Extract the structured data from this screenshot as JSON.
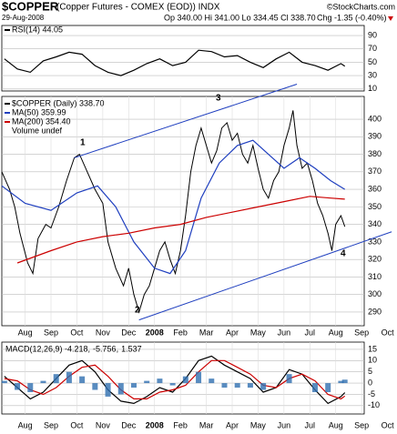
{
  "header": {
    "symbol": "$COPPER",
    "title": "(Copper Futures - COMEX (EOD)) INDX",
    "credit": "©StockCharts.com",
    "date": "29-Aug-2008",
    "quote": "Op 340.00 Hi 341.00 Lo 334.45 Cl 338.70",
    "change": "Chg -1.35 (-0.40%)"
  },
  "chart_data": [
    {
      "type": "line",
      "ylim": [
        7,
        105
      ],
      "yticks": [
        10,
        30,
        50,
        70,
        90
      ],
      "xlim": [
        -0.9,
        13.1
      ],
      "grid": true,
      "series": [
        {
          "name": "RSI(14) 44.05",
          "color": "#000000",
          "x": [
            -0.8,
            -0.3,
            0.2,
            0.7,
            1.2,
            1.7,
            2.2,
            2.7,
            3.2,
            3.7,
            4.2,
            4.7,
            5.2,
            5.7,
            6.2,
            6.7,
            7.2,
            7.7,
            8.2,
            8.7,
            9.2,
            9.7,
            10.2,
            10.7,
            11.2,
            11.7,
            12.2,
            12.35
          ],
          "values": [
            55,
            40,
            35,
            52,
            58,
            65,
            62,
            45,
            35,
            30,
            38,
            48,
            55,
            45,
            50,
            68,
            66,
            58,
            60,
            50,
            42,
            55,
            65,
            50,
            45,
            38,
            48,
            44.05
          ]
        }
      ]
    },
    {
      "type": "line",
      "ylim": [
        282.2,
        413
      ],
      "yticks": [
        290,
        300,
        310,
        320,
        330,
        340,
        350,
        360,
        370,
        380,
        390,
        400
      ],
      "xlim": [
        -0.9,
        13.1
      ],
      "grid": true,
      "xticks": [
        {
          "value": 0,
          "label": "Aug"
        },
        {
          "value": 1,
          "label": "Sep"
        },
        {
          "value": 2,
          "label": "Oct"
        },
        {
          "value": 3,
          "label": "Nov"
        },
        {
          "value": 4,
          "label": "Dec"
        },
        {
          "value": 5,
          "label": "2008"
        },
        {
          "value": 6,
          "label": "Feb"
        },
        {
          "value": 7,
          "label": "Mar"
        },
        {
          "value": 8,
          "label": "Apr"
        },
        {
          "value": 9,
          "label": "May"
        },
        {
          "value": 10,
          "label": "Jun"
        },
        {
          "value": 11,
          "label": "Jul"
        },
        {
          "value": 12,
          "label": "Aug"
        },
        {
          "value": 13,
          "label": "Sep"
        },
        {
          "value": 14,
          "label": "Oct"
        }
      ],
      "series": [
        {
          "name": "$COPPER (Daily) 338.70",
          "color": "#000000",
          "x": [
            -0.9,
            -0.6,
            -0.4,
            -0.2,
            0.1,
            0.3,
            0.5,
            0.8,
            1.0,
            1.3,
            1.6,
            1.9,
            2.1,
            2.4,
            2.7,
            3.0,
            3.2,
            3.5,
            3.8,
            4.0,
            4.2,
            4.4,
            4.6,
            4.8,
            5.0,
            5.2,
            5.4,
            5.6,
            5.8,
            6.0,
            6.2,
            6.4,
            6.6,
            6.8,
            7.0,
            7.2,
            7.4,
            7.6,
            7.8,
            8.0,
            8.2,
            8.4,
            8.6,
            8.8,
            9.0,
            9.2,
            9.4,
            9.6,
            9.8,
            10.0,
            10.2,
            10.35,
            10.5,
            10.7,
            10.9,
            11.1,
            11.3,
            11.5,
            11.7,
            11.85,
            12.0,
            12.2,
            12.35
          ],
          "values": [
            370,
            360,
            350,
            335,
            318,
            312,
            332,
            340,
            338,
            350,
            365,
            378,
            380,
            370,
            360,
            352,
            330,
            315,
            305,
            315,
            300,
            290,
            300,
            305,
            315,
            325,
            330,
            320,
            312,
            325,
            345,
            370,
            385,
            395,
            385,
            375,
            382,
            395,
            398,
            388,
            392,
            380,
            375,
            385,
            372,
            360,
            355,
            365,
            370,
            385,
            395,
            405,
            385,
            372,
            375,
            365,
            352,
            345,
            335,
            325,
            340,
            345,
            338.7
          ]
        },
        {
          "name": "MA(50) 359.99",
          "color": "#1f3fbf",
          "x": [
            -0.9,
            0,
            1,
            2,
            2.8,
            3.5,
            4.2,
            5,
            5.6,
            6.2,
            6.8,
            7.5,
            8.2,
            8.8,
            9.4,
            10,
            10.6,
            11.2,
            11.8,
            12.35
          ],
          "values": [
            362,
            352,
            348,
            358,
            362,
            350,
            330,
            315,
            312,
            325,
            355,
            375,
            385,
            388,
            380,
            372,
            378,
            372,
            365,
            359.99
          ]
        },
        {
          "name": "MA(200) 354.40",
          "color": "#cc0000",
          "x": [
            -0.3,
            1,
            2,
            3,
            4,
            5,
            6,
            7,
            8,
            9,
            10,
            11,
            11.8,
            12.35
          ],
          "values": [
            318,
            325,
            330,
            333,
            335,
            338,
            340,
            344,
            347,
            350,
            353,
            356,
            355,
            354.4
          ]
        }
      ],
      "note": "Volume undef",
      "trendlines": [
        {
          "x": [
            1.9,
            10.5
          ],
          "y": [
            378,
            420
          ]
        },
        {
          "x": [
            4.4,
            14.16
          ],
          "y": [
            285.5,
            335.8
          ]
        }
      ],
      "annotations": [
        "1",
        "2",
        "3",
        "4"
      ]
    },
    {
      "type": "line",
      "ylim": [
        -13.7,
        18.2
      ],
      "yticks": [
        15,
        10,
        5,
        0,
        -5,
        -10
      ],
      "xlim": [
        -0.9,
        13.1
      ],
      "grid": true,
      "xticks": [
        {
          "value": 0,
          "label": "Aug"
        },
        {
          "value": 1,
          "label": "Sep"
        },
        {
          "value": 2,
          "label": "Oct"
        },
        {
          "value": 3,
          "label": "Nov"
        },
        {
          "value": 4,
          "label": "Dec"
        },
        {
          "value": 5,
          "label": "2008"
        },
        {
          "value": 6,
          "label": "Feb"
        },
        {
          "value": 7,
          "label": "Mar"
        },
        {
          "value": 8,
          "label": "Apr"
        },
        {
          "value": 9,
          "label": "May"
        },
        {
          "value": 10,
          "label": "Jun"
        },
        {
          "value": 11,
          "label": "Jul"
        },
        {
          "value": 12,
          "label": "Aug"
        },
        {
          "value": 13,
          "label": "Sep"
        },
        {
          "value": 14,
          "label": "Oct"
        }
      ],
      "x": [
        -0.8,
        -0.3,
        0.2,
        0.7,
        1.2,
        1.7,
        2.2,
        2.7,
        3.2,
        3.7,
        4.2,
        4.7,
        5.2,
        5.7,
        6.2,
        6.7,
        7.2,
        7.7,
        8.2,
        8.7,
        9.2,
        9.7,
        10.2,
        10.7,
        11.2,
        11.7,
        12.2,
        12.35
      ],
      "series": [
        {
          "name": "MACD(12,26,9) -4.218,",
          "color": "#000000",
          "values": [
            3,
            -2,
            -7,
            -4,
            2,
            8,
            10,
            5,
            -3,
            -8,
            -9,
            -6,
            -2,
            -4,
            2,
            10,
            12,
            8,
            5,
            2,
            -4,
            -2,
            6,
            4,
            -3,
            -9,
            -6,
            -4.218
          ]
        },
        {
          "name": "-5.756,",
          "color": "#cc0000",
          "values": [
            2,
            1,
            -3,
            -5,
            -2,
            3,
            7,
            8,
            3,
            -3,
            -7,
            -7,
            -4,
            -3,
            -1,
            5,
            10,
            10,
            7,
            4,
            -1,
            -2,
            2,
            4,
            1,
            -5,
            -7,
            -5.756
          ]
        },
        {
          "name": "1.537",
          "color": "#2f6fb0",
          "style": "bars",
          "values": [
            1,
            -3,
            -4,
            1,
            4,
            5,
            3,
            -3,
            -6,
            -5,
            -2,
            1,
            2,
            -1,
            3,
            5,
            2,
            -2,
            -2,
            -2,
            -3,
            0,
            4,
            0,
            -4,
            -4,
            1,
            1.537
          ]
        }
      ]
    }
  ]
}
